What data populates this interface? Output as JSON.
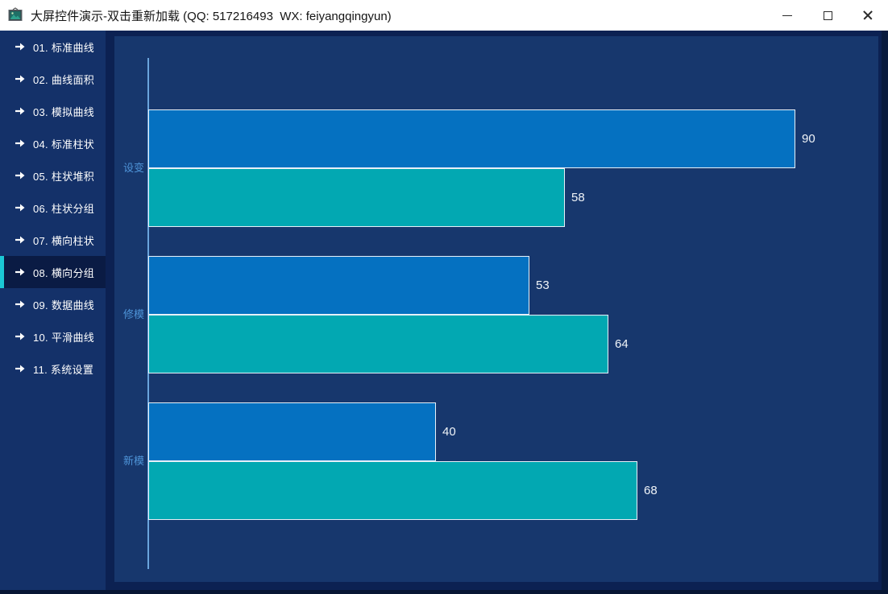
{
  "window": {
    "title": "大屏控件演示-双击重新加载 (QQ: 517216493  WX: feiyangqingyun)",
    "controls": {
      "minimize": "minimize",
      "maximize": "maximize",
      "close": "close"
    }
  },
  "sidebar": {
    "items": [
      {
        "label": "01. 标准曲线",
        "active": false
      },
      {
        "label": "02. 曲线面积",
        "active": false
      },
      {
        "label": "03. 模拟曲线",
        "active": false
      },
      {
        "label": "04. 标准柱状",
        "active": false
      },
      {
        "label": "05. 柱状堆积",
        "active": false
      },
      {
        "label": "06. 柱状分组",
        "active": false
      },
      {
        "label": "07. 横向柱状",
        "active": false
      },
      {
        "label": "08. 横向分组",
        "active": true
      },
      {
        "label": "09. 数据曲线",
        "active": false
      },
      {
        "label": "10. 平滑曲线",
        "active": false
      },
      {
        "label": "11. 系统设置",
        "active": false
      }
    ]
  },
  "chart_data": {
    "type": "bar",
    "orientation": "horizontal",
    "title": "",
    "categories": [
      "设变",
      "修模",
      "新模"
    ],
    "series": [
      {
        "name": "series-blue",
        "color": "#0571c1",
        "values": [
          90,
          53,
          40
        ]
      },
      {
        "name": "series-teal",
        "color": "#02a8b2",
        "values": [
          58,
          64,
          68
        ]
      }
    ],
    "xlim": [
      0,
      100
    ],
    "value_labels": true,
    "legend": "none",
    "grid": false
  },
  "colors": {
    "titlebar_bg": "#ffffff",
    "titlebar_text": "#141414",
    "window_bg": "#0c2152",
    "sidebar_bg": "#143169",
    "sidebar_active_bg": "#0a1b44",
    "sidebar_accent": "#1bc8d5",
    "panel_bg": "#17376d",
    "bar_blue": "#0571c1",
    "bar_teal": "#02a8b2",
    "bar_border": "#e8f0f8",
    "axis_line": "#6aa4dc",
    "category_label_color": "#4e94d8",
    "value_label_color": "#f0f4f8"
  }
}
